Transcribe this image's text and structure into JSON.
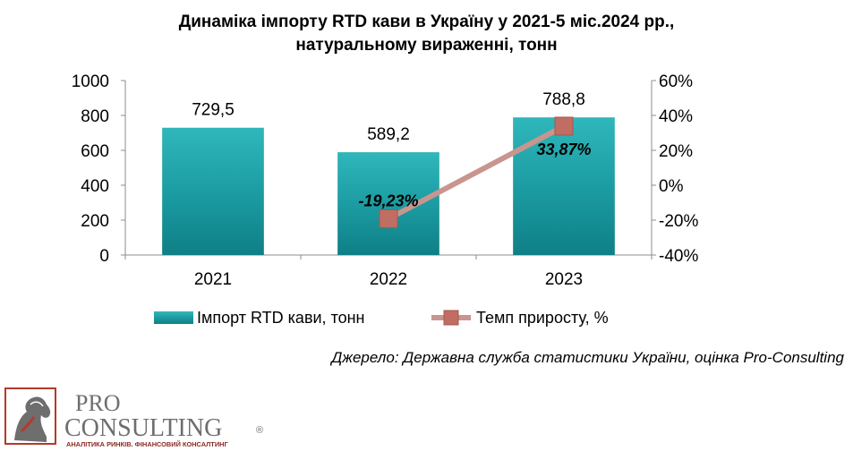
{
  "title": {
    "line1": "Динаміка імпорту RTD кави в Україну у 2021-5 міс.2024 рр.,",
    "line2": "натуральному вираженні, тонн"
  },
  "chart_data": {
    "type": "bar",
    "categories": [
      "2021",
      "2022",
      "2023"
    ],
    "series": [
      {
        "name": "Імпорт RTD кави, тонн",
        "type": "bar",
        "axis": "left",
        "values": [
          729.5,
          589.2,
          788.8
        ],
        "labels": [
          "729,5",
          "589,2",
          "788,8"
        ],
        "color": "#1a9aa0"
      },
      {
        "name": "Темп приросту, %",
        "type": "line",
        "axis": "right",
        "values": [
          null,
          -19.23,
          33.87
        ],
        "labels": [
          null,
          "-19,23%",
          "33,87%"
        ],
        "color": "#c9958f"
      }
    ],
    "ylim": [
      0,
      1000
    ],
    "yticks": [
      "0",
      "200",
      "400",
      "600",
      "800",
      "1000"
    ],
    "y2lim": [
      -40,
      60
    ],
    "y2ticks": [
      "-40%",
      "-20%",
      "0%",
      "20%",
      "40%",
      "60%"
    ],
    "grid": false,
    "legend": "bottom"
  },
  "source": "Джерело: Державна служба статистики України, оцінка Pro-Consulting",
  "logo": {
    "line1": "PRO",
    "line2": "CONSULTING",
    "tagline": "АНАЛІТИКА РИНКІВ. ФІНАНСОВИЙ КОНСАЛТИНГ",
    "registered": "®"
  }
}
